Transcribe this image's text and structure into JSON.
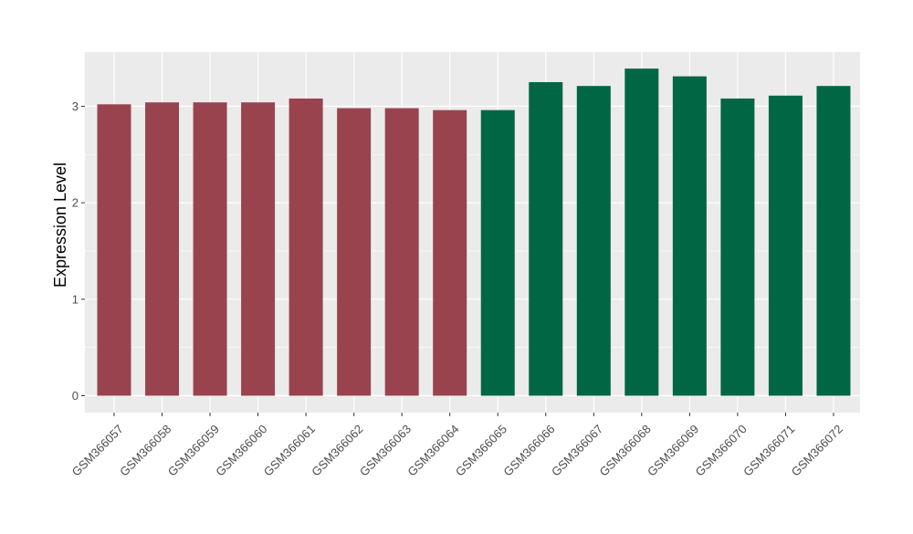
{
  "chart_data": {
    "type": "bar",
    "title": "",
    "xlabel": "",
    "ylabel": "Expression Level",
    "ylim": [
      -0.17,
      3.45
    ],
    "yticks": [
      0,
      1,
      2,
      3
    ],
    "grid": true,
    "legend": "none",
    "colors": {
      "panel_background": "#EBEBEB",
      "gridline": "#FFFFFF",
      "group_a": "#99434F",
      "group_b": "#006644"
    },
    "categories": [
      "GSM366057",
      "GSM366058",
      "GSM366059",
      "GSM366060",
      "GSM366061",
      "GSM366062",
      "GSM366063",
      "GSM366064",
      "GSM366065",
      "GSM366066",
      "GSM366067",
      "GSM366068",
      "GSM366069",
      "GSM366070",
      "GSM366071",
      "GSM366072"
    ],
    "values": [
      3.02,
      3.04,
      3.04,
      3.04,
      3.08,
      2.98,
      2.98,
      2.96,
      2.96,
      3.25,
      3.21,
      3.39,
      3.31,
      3.08,
      3.11,
      3.21
    ],
    "bar_colors": [
      "#99434F",
      "#99434F",
      "#99434F",
      "#99434F",
      "#99434F",
      "#99434F",
      "#99434F",
      "#99434F",
      "#006644",
      "#006644",
      "#006644",
      "#006644",
      "#006644",
      "#006644",
      "#006644",
      "#006644"
    ]
  }
}
